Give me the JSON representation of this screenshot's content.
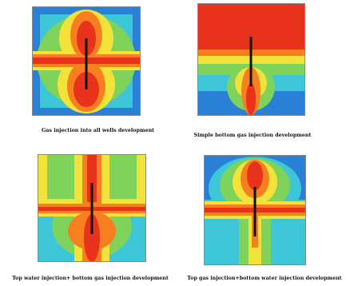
{
  "panels": [
    {
      "caption": "Gas injection into all wells development"
    },
    {
      "caption": "Simple bottom gas injection development"
    },
    {
      "caption": "Top water injection+ bottom gas injection development"
    },
    {
      "caption": "Top gas injection+bottom water injection development"
    }
  ],
  "colors": {
    "red": "#e8321c",
    "orange": "#f77f1f",
    "yellow": "#f2e23a",
    "green": "#7fd25a",
    "cyan": "#3cc6d8",
    "blue": "#2a7fd6",
    "well": "#111111"
  }
}
